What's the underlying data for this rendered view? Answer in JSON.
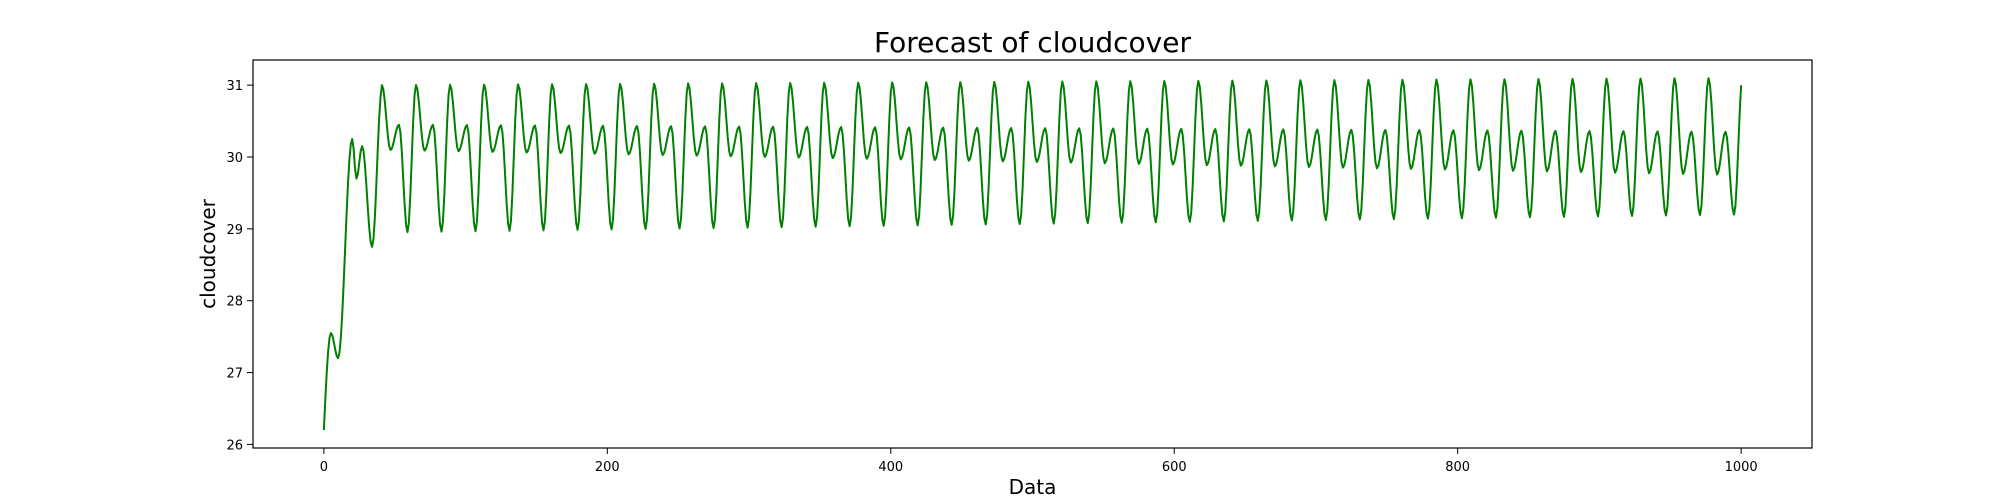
{
  "chart_data": {
    "type": "line",
    "title": "Forecast of cloudcover",
    "xlabel": "Data",
    "ylabel": "cloudcover",
    "xlim": [
      -50,
      1050
    ],
    "ylim": [
      25.95,
      31.35
    ],
    "xticks": [
      0,
      200,
      400,
      600,
      800,
      1000
    ],
    "yticks": [
      26,
      27,
      28,
      29,
      30,
      31
    ],
    "grid": false,
    "line_color": "#008000",
    "series": [
      {
        "x_start": 0,
        "x_end": 1000,
        "num_points": 1001,
        "warmup": [
          {
            "x": 0,
            "y": 26.2
          },
          {
            "x": 5,
            "y": 27.55
          },
          {
            "x": 10,
            "y": 27.2
          },
          {
            "x": 20,
            "y": 30.25
          },
          {
            "x": 23,
            "y": 29.7
          },
          {
            "x": 27,
            "y": 30.15
          },
          {
            "x": 34,
            "y": 28.75
          },
          {
            "x": 41,
            "y": 30.95
          }
        ],
        "cycle_start": 41,
        "cycle_period": 24,
        "cycle_shape": {
          "peak_1": 31.0,
          "trough_1": 30.1,
          "peak_2": 30.45,
          "trough_2": 28.95
        },
        "cycle_end": {
          "peak_1": 31.1,
          "trough_1": 29.75,
          "peak_2": 30.35,
          "trough_2": 29.2
        },
        "end_value": 31.0
      }
    ]
  }
}
